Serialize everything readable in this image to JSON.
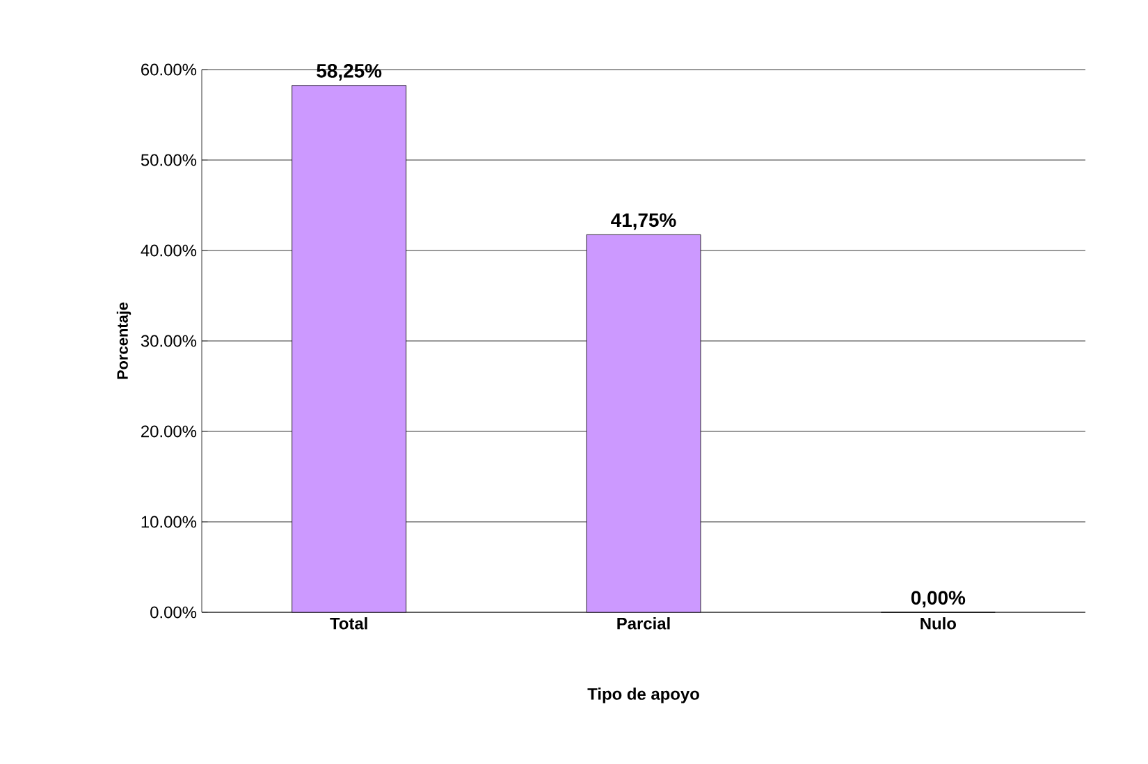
{
  "chart_data": {
    "type": "bar",
    "xlabel": "Tipo de apoyo",
    "ylabel": "Porcentaje",
    "categories": [
      "Total",
      "Parcial",
      "Nulo"
    ],
    "values": [
      58.25,
      41.75,
      0
    ],
    "value_labels": [
      "58,25%",
      "41,75%",
      "0,00%"
    ],
    "color": "#cc99ff",
    "ylim": [
      0,
      60
    ],
    "yticks": [
      {
        "value": 0,
        "label": "0.00%"
      },
      {
        "value": 10,
        "label": "10.00%"
      },
      {
        "value": 20,
        "label": "20.00%"
      },
      {
        "value": 30,
        "label": "30.00%"
      },
      {
        "value": 40,
        "label": "40.00%"
      },
      {
        "value": 50,
        "label": "50.00%"
      },
      {
        "value": 60,
        "label": "60.00%"
      }
    ],
    "grid": "y"
  }
}
